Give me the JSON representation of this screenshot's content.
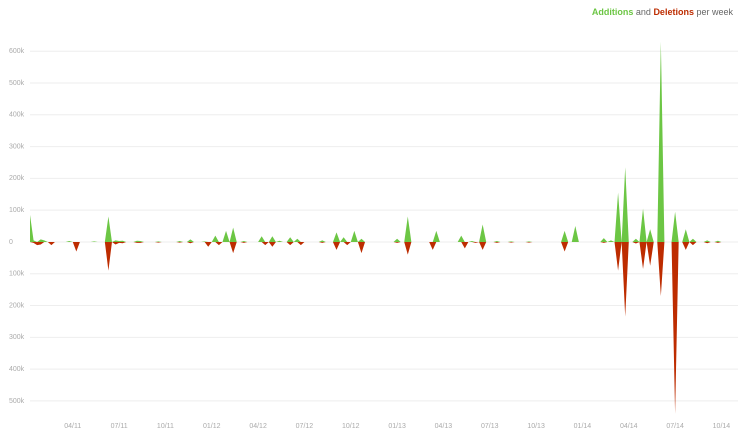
{
  "chart_data": {
    "type": "area",
    "title_joiner": "and",
    "title_suffix": "per week",
    "categories": [
      null,
      null,
      null,
      null,
      null,
      null,
      null,
      null,
      null,
      null,
      null,
      null,
      "04/11",
      null,
      null,
      null,
      null,
      null,
      null,
      null,
      null,
      null,
      null,
      null,
      null,
      "07/11",
      null,
      null,
      null,
      null,
      null,
      null,
      null,
      null,
      null,
      null,
      null,
      null,
      "10/11",
      null,
      null,
      null,
      null,
      null,
      null,
      null,
      null,
      null,
      null,
      null,
      null,
      "01/12",
      null,
      null,
      null,
      null,
      null,
      null,
      null,
      null,
      null,
      null,
      null,
      null,
      "04/12",
      null,
      null,
      null,
      null,
      null,
      null,
      null,
      null,
      null,
      null,
      null,
      null,
      "07/12",
      null,
      null,
      null,
      null,
      null,
      null,
      null,
      null,
      null,
      null,
      null,
      null,
      "10/12",
      null,
      null,
      null,
      null,
      null,
      null,
      null,
      null,
      null,
      null,
      null,
      null,
      "01/13",
      null,
      null,
      null,
      null,
      null,
      null,
      null,
      null,
      null,
      null,
      null,
      null,
      "04/13",
      null,
      null,
      null,
      null,
      null,
      null,
      null,
      null,
      null,
      null,
      null,
      null,
      "07/13",
      null,
      null,
      null,
      null,
      null,
      null,
      null,
      null,
      null,
      null,
      null,
      null,
      "10/13",
      null,
      null,
      null,
      null,
      null,
      null,
      null,
      null,
      null,
      null,
      null,
      null,
      "01/14",
      null,
      null,
      null,
      null,
      null,
      null,
      null,
      null,
      null,
      null,
      null,
      null,
      "04/14",
      null,
      null,
      null,
      null,
      null,
      null,
      null,
      null,
      null,
      null,
      null,
      null,
      "07/14",
      null,
      null,
      null,
      null,
      null,
      null,
      null,
      null,
      null,
      null,
      null,
      null,
      "10/14",
      null
    ],
    "series": [
      {
        "name": "Additions",
        "color": "#6cc644",
        "values": [
          85000,
          5000,
          0,
          8000,
          5000,
          0,
          0,
          0,
          0,
          0,
          0,
          3000,
          0,
          0,
          0,
          0,
          0,
          0,
          2000,
          0,
          0,
          0,
          80000,
          0,
          5000,
          3000,
          4000,
          0,
          0,
          0,
          4000,
          3000,
          0,
          0,
          0,
          0,
          2000,
          0,
          0,
          0,
          0,
          0,
          3000,
          0,
          0,
          8000,
          0,
          0,
          0,
          2000,
          0,
          0,
          20000,
          0,
          0,
          35000,
          0,
          45000,
          0,
          0,
          3000,
          0,
          0,
          0,
          0,
          18000,
          0,
          0,
          18000,
          0,
          4000,
          0,
          0,
          15000,
          0,
          10000,
          0,
          0,
          0,
          0,
          0,
          0,
          5000,
          0,
          0,
          0,
          30000,
          0,
          15000,
          0,
          0,
          35000,
          0,
          10000,
          0,
          0,
          0,
          0,
          0,
          0,
          0,
          0,
          0,
          10000,
          0,
          0,
          80000,
          0,
          0,
          0,
          0,
          0,
          0,
          0,
          35000,
          0,
          0,
          0,
          0,
          0,
          0,
          20000,
          0,
          0,
          3000,
          0,
          0,
          55000,
          0,
          0,
          0,
          3000,
          0,
          0,
          0,
          2000,
          0,
          0,
          0,
          0,
          2000,
          0,
          0,
          0,
          0,
          0,
          0,
          0,
          0,
          0,
          35000,
          0,
          0,
          50000,
          0,
          0,
          0,
          0,
          0,
          0,
          0,
          12000,
          0,
          5000,
          0,
          155000,
          0,
          235000,
          0,
          0,
          10000,
          0,
          105000,
          0,
          40000,
          0,
          0,
          630000,
          0,
          0,
          0,
          95000,
          0,
          0,
          40000,
          0,
          10000,
          0,
          0,
          0,
          5000,
          0,
          0,
          4000,
          0,
          0
        ]
      },
      {
        "name": "Deletions",
        "color": "#bd2c00",
        "values": [
          0,
          -3000,
          -10000,
          -8000,
          0,
          0,
          -10000,
          0,
          0,
          0,
          0,
          0,
          0,
          -30000,
          0,
          0,
          0,
          0,
          0,
          0,
          0,
          0,
          -90000,
          0,
          -8000,
          -3000,
          -4000,
          0,
          0,
          0,
          -3000,
          -3000,
          0,
          0,
          0,
          0,
          -2000,
          0,
          0,
          0,
          0,
          0,
          -2000,
          0,
          0,
          -4000,
          0,
          0,
          0,
          0,
          -15000,
          0,
          0,
          -10000,
          0,
          0,
          0,
          -35000,
          0,
          0,
          -3000,
          0,
          0,
          0,
          0,
          0,
          -10000,
          0,
          -15000,
          0,
          0,
          0,
          0,
          -10000,
          0,
          0,
          -10000,
          0,
          0,
          0,
          0,
          0,
          -3000,
          0,
          0,
          0,
          -25000,
          0,
          0,
          -10000,
          0,
          0,
          0,
          -35000,
          0,
          0,
          0,
          0,
          0,
          0,
          0,
          0,
          0,
          -3000,
          0,
          0,
          -40000,
          0,
          0,
          0,
          0,
          0,
          0,
          -25000,
          0,
          0,
          0,
          0,
          0,
          0,
          0,
          0,
          -20000,
          0,
          0,
          -3000,
          0,
          -25000,
          0,
          0,
          0,
          -3000,
          0,
          0,
          0,
          -2000,
          0,
          0,
          0,
          0,
          -2000,
          0,
          0,
          0,
          0,
          0,
          0,
          0,
          0,
          0,
          -30000,
          0,
          0,
          0,
          0,
          0,
          0,
          0,
          0,
          0,
          0,
          -3000,
          0,
          0,
          0,
          -90000,
          0,
          -235000,
          0,
          0,
          -5000,
          0,
          -85000,
          0,
          -75000,
          0,
          0,
          -170000,
          0,
          0,
          0,
          -540000,
          0,
          0,
          -25000,
          0,
          -10000,
          0,
          0,
          0,
          -4000,
          0,
          0,
          -3000,
          0,
          0
        ]
      }
    ],
    "ylim": [
      -560000,
      650000
    ],
    "yticks": [
      {
        "value": 600000,
        "label": "600k"
      },
      {
        "value": 500000,
        "label": "500k"
      },
      {
        "value": 400000,
        "label": "400k"
      },
      {
        "value": 300000,
        "label": "300k"
      },
      {
        "value": 200000,
        "label": "200k"
      },
      {
        "value": 100000,
        "label": "100k"
      },
      0,
      {
        "value": -100000,
        "label": "100k"
      },
      {
        "value": -200000,
        "label": "200k"
      },
      {
        "value": -300000,
        "label": "300k"
      },
      {
        "value": -400000,
        "label": "400k"
      },
      {
        "value": -500000,
        "label": "500k"
      }
    ],
    "grid": true
  }
}
